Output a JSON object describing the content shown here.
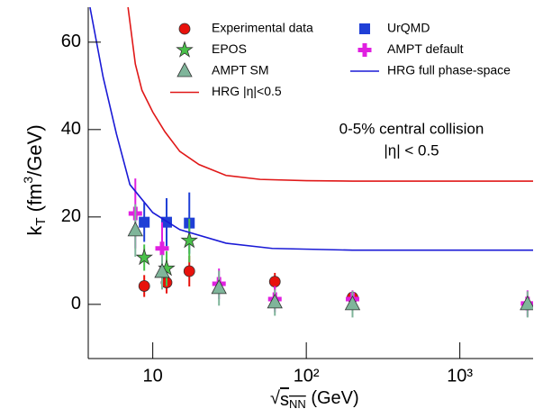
{
  "chart_data": {
    "type": "scatter",
    "x_label": [
      "√",
      "s",
      "NN",
      " (GeV)"
    ],
    "y_label": [
      "k",
      "T",
      "  (fm",
      "3",
      "/GeV)"
    ],
    "annotations": [
      "0-5% central collision",
      "|η| < 0.5"
    ],
    "xscale": "log",
    "xlim": [
      3.8,
      3000
    ],
    "ylim": [
      -12.4,
      68
    ],
    "xticks": [
      10,
      {
        "value": 100,
        "label": "10²"
      },
      {
        "value": 1000,
        "label": "10³"
      }
    ],
    "yticks": [
      0,
      20,
      40,
      60
    ],
    "series": [
      {
        "name": "Experimental data",
        "color": "#e8120c",
        "marker": "circle",
        "x": [
          8.8,
          12.3,
          17.3,
          62.4,
          200
        ],
        "values": [
          4.2,
          5,
          7.6,
          5.2,
          1.6
        ],
        "errors": [
          2.5,
          2.5,
          3.5,
          2,
          1.2
        ]
      },
      {
        "name": "UrQMD",
        "color": "#1f3fd6",
        "marker": "square",
        "x": [
          8.8,
          12.3,
          17.3
        ],
        "values": [
          18.8,
          18.8,
          18.6
        ],
        "errors": [
          4.5,
          5.5,
          7
        ]
      },
      {
        "name": "EPOS",
        "color": "#49c149",
        "marker": "star",
        "x": [
          8.8,
          12.3,
          17.3
        ],
        "values": [
          10.7,
          8.2,
          14.6
        ],
        "errors": [
          3,
          4,
          5
        ]
      },
      {
        "name": "AMPT default",
        "color": "#e020e0",
        "marker": "plus",
        "x": [
          7.7,
          11.5,
          27,
          62.4,
          200,
          2760
        ],
        "values": [
          20.8,
          12.8,
          4.7,
          1.2,
          1.2,
          0.2
        ],
        "errors": [
          8,
          6,
          3.5,
          3,
          2,
          3
        ]
      },
      {
        "name": "AMPT SM",
        "color": "#7fb59a",
        "marker": "triangle",
        "x": [
          7.7,
          11.5,
          27,
          62.4,
          200,
          2760
        ],
        "values": [
          16.9,
          7.4,
          3.7,
          0.4,
          0,
          0
        ],
        "errors": [
          6,
          4,
          4,
          3,
          3,
          3
        ]
      },
      {
        "name": "HRG full phase-space",
        "color": "#1a1ad6",
        "marker": "line",
        "x": [
          3.9,
          4.75,
          5.8,
          7.1,
          10,
          15,
          30,
          60,
          200,
          3000
        ],
        "values": [
          68,
          52,
          39,
          27.4,
          21,
          17.1,
          14,
          12.8,
          12.4,
          12.4
        ]
      },
      {
        "name": "HRG |η|<0.5",
        "color": "#e01818",
        "marker": "line",
        "x": [
          6.9,
          7.7,
          8.5,
          10,
          12,
          15,
          20,
          30,
          50,
          100,
          200,
          3000
        ],
        "values": [
          68,
          55,
          49,
          44,
          39.5,
          35,
          32,
          29.5,
          28.6,
          28.3,
          28.2,
          28.2
        ]
      }
    ]
  }
}
